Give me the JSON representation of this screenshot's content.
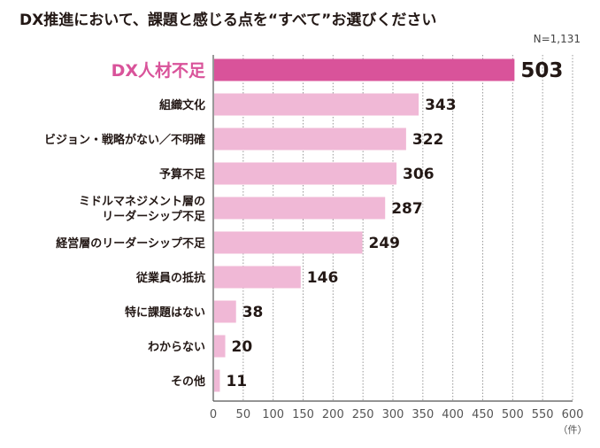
{
  "chart_data": {
    "type": "bar",
    "orientation": "horizontal",
    "title": "DX推進において、課題と感じる点を“すべて”お選びください",
    "note": "N=1,131",
    "categories": [
      [
        "DX人材不足"
      ],
      [
        "組織文化"
      ],
      [
        "ビジョン・戦略がない／不明確"
      ],
      [
        "予算不足"
      ],
      [
        "ミドルマネジメント層の",
        "リーダーシップ不足"
      ],
      [
        "経営層のリーダーシップ不足"
      ],
      [
        "従業員の抵抗"
      ],
      [
        "特に課題はない"
      ],
      [
        "わからない"
      ],
      [
        "その他"
      ]
    ],
    "values": [
      503,
      343,
      322,
      306,
      287,
      249,
      146,
      38,
      20,
      11
    ],
    "highlight_index": 0,
    "xlim": [
      0,
      600
    ],
    "xticks": [
      0,
      50,
      100,
      150,
      200,
      250,
      300,
      350,
      400,
      450,
      500,
      550,
      600
    ],
    "xunit": "（件）",
    "grid": "vertical dotted",
    "colors": {
      "highlight": "#d9539a",
      "default": "#f0b8d6",
      "highlight_label": "#d9539a"
    }
  }
}
